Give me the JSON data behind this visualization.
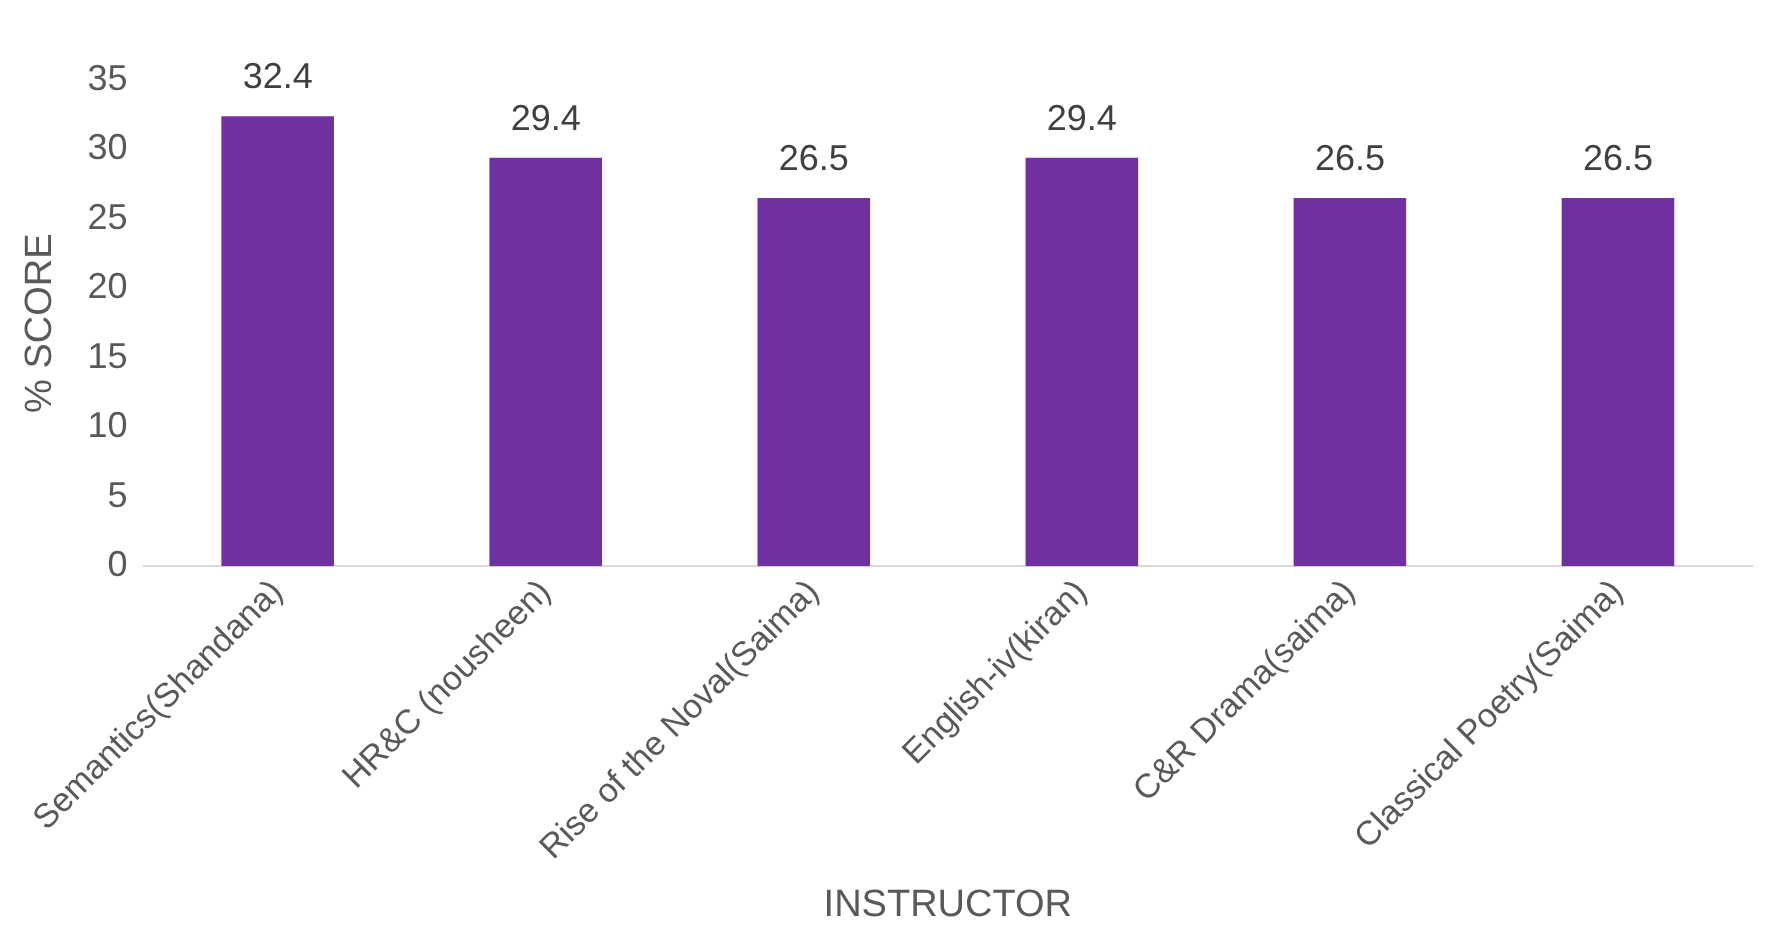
{
  "chart_data": {
    "type": "bar",
    "xlabel": "INSTRUCTOR",
    "ylabel": "% SCORE",
    "categories": [
      "Semantics(Shandana)",
      "HR&C (nousheen)",
      "Rise of the Noval(Saima)",
      "English-iv(kiran)",
      "C&R Drama(saima)",
      "Classical Poetry(Saima)"
    ],
    "values": [
      32.4,
      29.4,
      26.5,
      29.4,
      26.5,
      26.5
    ],
    "color": "#7030a0",
    "ylim": [
      0,
      35
    ],
    "yticks": [
      0,
      5,
      10,
      15,
      20,
      25,
      30,
      35
    ],
    "grid": false,
    "legend": false,
    "data_labels": true
  }
}
